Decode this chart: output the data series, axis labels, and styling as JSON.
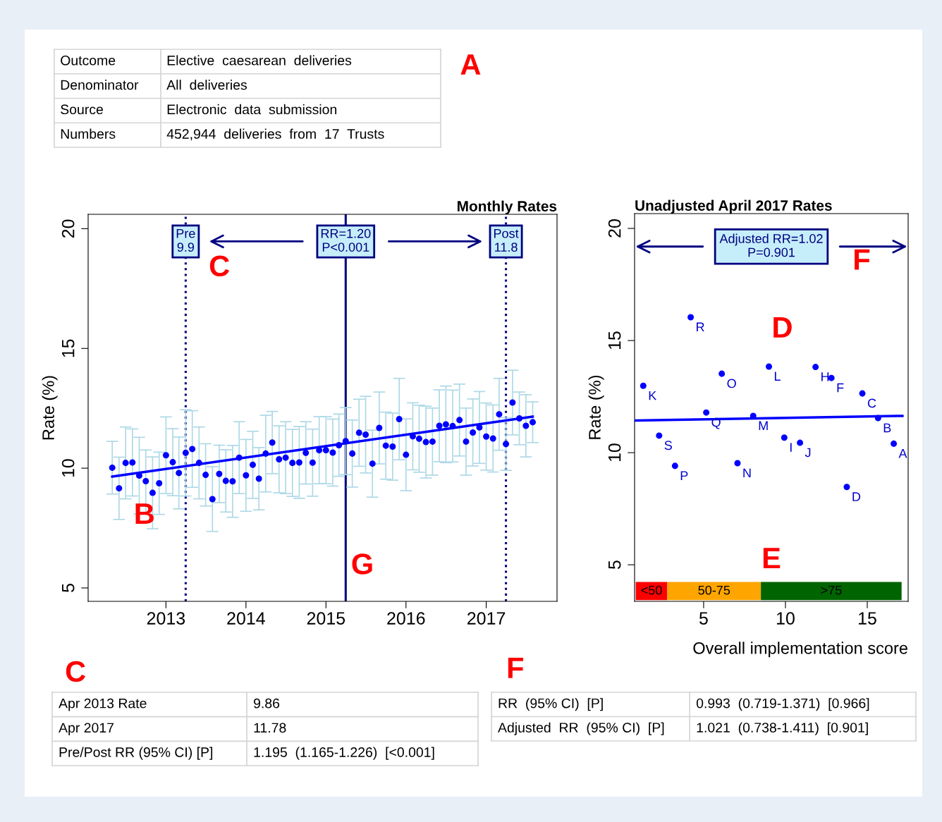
{
  "chart_data": [
    {
      "type": "other",
      "title": "A",
      "categories": [
        "Outcome",
        "Denominator",
        "Source",
        "Numbers"
      ],
      "annotations": [
        "Elective  caesarean  deliveries",
        "All  deliveries",
        "Electronic  data  submission",
        "452,944  deliveries  from  17  Trusts"
      ]
    },
    {
      "type": "scatter",
      "title": "Monthly Rates",
      "ylabel": "Rate (%)",
      "marker": "circle",
      "x": [
        "2012-05",
        "2012-06",
        "2012-07",
        "2012-08",
        "2012-09",
        "2012-10",
        "2012-11",
        "2012-12",
        "2013-01",
        "2013-02",
        "2013-03",
        "2013-04",
        "2013-05",
        "2013-06",
        "2013-07",
        "2013-08",
        "2013-09",
        "2013-10",
        "2013-11",
        "2013-12",
        "2014-01",
        "2014-02",
        "2014-03",
        "2014-04",
        "2014-05",
        "2014-06",
        "2014-07",
        "2014-08",
        "2014-09",
        "2014-10",
        "2014-11",
        "2014-12",
        "2015-01",
        "2015-02",
        "2015-03",
        "2015-04",
        "2015-05",
        "2015-06",
        "2015-07",
        "2015-08",
        "2015-09",
        "2015-10",
        "2015-11",
        "2015-12",
        "2016-01",
        "2016-02",
        "2016-03",
        "2016-04",
        "2016-05",
        "2016-06",
        "2016-07",
        "2016-08",
        "2016-09",
        "2016-10",
        "2016-11",
        "2016-12",
        "2017-01",
        "2017-02",
        "2017-03",
        "2017-04",
        "2017-05",
        "2017-06",
        "2017-07",
        "2017-08"
      ],
      "series": [
        {
          "type": "scatter",
          "color": "#0000ff",
          "values": [
            10.02,
            9.16,
            10.22,
            10.24,
            9.69,
            9.46,
            8.97,
            9.37,
            10.54,
            10.25,
            9.8,
            10.64,
            10.8,
            10.22,
            9.72,
            8.71,
            9.76,
            9.47,
            9.45,
            10.44,
            9.7,
            10.14,
            9.56,
            10.61,
            11.07,
            10.37,
            10.44,
            10.22,
            10.24,
            10.64,
            10.23,
            10.75,
            10.75,
            10.65,
            10.96,
            11.13,
            10.61,
            11.48,
            11.4,
            10.19,
            11.68,
            10.94,
            10.9,
            12.05,
            10.56,
            11.33,
            11.23,
            11.09,
            11.11,
            11.77,
            11.83,
            11.76,
            12.01,
            11.11,
            11.49,
            11.7,
            11.32,
            11.24,
            12.25,
            11.01,
            12.74,
            12.08,
            11.77,
            11.92
          ],
          "errors": [
            1.1,
            1.3,
            1.5,
            1.4,
            1.6,
            1.3,
            1.5,
            1.3,
            1.6,
            1.4,
            1.5,
            1.8,
            1.6,
            1.5,
            1.3,
            1.35,
            1.2,
            1.3,
            1.5,
            1.5,
            1.5,
            1.4,
            1.3,
            1.6,
            1.3,
            1.4,
            1.5,
            1.4,
            1.5,
            1.3,
            1.4,
            1.4,
            1.4,
            1.4,
            1.3,
            1.4,
            1.4,
            1.4,
            1.6,
            1.4,
            1.5,
            1.4,
            1.4,
            1.7,
            1.5,
            1.4,
            1.4,
            1.5,
            1.4,
            1.5,
            1.6,
            1.5,
            1.5,
            1.4,
            1.4,
            1.5,
            1.4,
            1.4,
            1.5,
            1.1,
            1.35,
            1.1,
            1.3,
            0.85
          ]
        },
        {
          "type": "line",
          "color": "#0000ff",
          "marker": "none",
          "x": [
            "2012-05",
            "2017-08"
          ],
          "values": [
            9.65,
            12.15
          ]
        }
      ],
      "xlim": [
        "2012-01-12",
        "2017-11-20"
      ],
      "xticks": [
        "2013",
        "2014",
        "2015",
        "2016",
        "2017"
      ],
      "ylim": [
        4.44,
        20.6
      ],
      "yticks": [
        5,
        10,
        15,
        20
      ],
      "ref_lines": [
        {
          "axis": "x",
          "value": "2013-04",
          "label": "Pre\n9.9",
          "line_style": "dotted",
          "color": "#000080"
        },
        {
          "axis": "x",
          "value": "2015-04",
          "label": "RR=1.20\nP<0.001",
          "line_style": "solid",
          "color": "#000080"
        },
        {
          "axis": "x",
          "value": "2017-04",
          "label": "Post\n11.8",
          "line_style": "dotted",
          "color": "#000080"
        }
      ],
      "annotations": [
        "B",
        "C",
        "G"
      ]
    },
    {
      "type": "scatter",
      "title": "Unadjusted April 2017 Rates",
      "xlabel": "Overall implementation score",
      "ylabel": "Rate (%)",
      "marker": "circle",
      "series": [
        {
          "type": "scatter",
          "color": "#0000ff",
          "x": [
            4.21,
            1.31,
            6.11,
            8.99,
            11.84,
            12.81,
            14.7,
            5.16,
            8.03,
            15.66,
            2.28,
            9.93,
            10.89,
            16.62,
            3.25,
            7.07,
            13.75
          ],
          "values": [
            16.04,
            12.98,
            13.52,
            13.84,
            13.82,
            13.33,
            12.64,
            11.79,
            11.64,
            11.54,
            10.76,
            10.67,
            10.44,
            10.4,
            9.41,
            9.53,
            8.47
          ]
        },
        {
          "type": "line",
          "color": "#0000ff",
          "marker": "none",
          "x": [
            0.8,
            17.15
          ],
          "values": [
            11.43,
            11.64
          ]
        }
      ],
      "xlim": [
        0.78,
        17.5
      ],
      "xticks": [
        5,
        10,
        15
      ],
      "ylim": [
        3.37,
        20.66
      ],
      "yticks": [
        5,
        10,
        15,
        20
      ],
      "bands": [
        {
          "axis": "x",
          "from": 0.85,
          "to": 2.78,
          "label": "<50",
          "color": "#ff0000"
        },
        {
          "axis": "x",
          "from": 2.78,
          "to": 8.5,
          "label": "50-75",
          "color": "#ffa500"
        },
        {
          "axis": "x",
          "from": 8.5,
          "to": 17.1,
          "label": ">75",
          "color": "#006400"
        }
      ],
      "annotations": [
        "Adjusted RR=1.02\nP=0.901",
        "D",
        "E",
        "F",
        {
          "text": "R",
          "x": 4.21,
          "y": 16.04
        },
        {
          "text": "K",
          "x": 1.31,
          "y": 12.98
        },
        {
          "text": "O",
          "x": 6.11,
          "y": 13.52
        },
        {
          "text": "L",
          "x": 8.99,
          "y": 13.84
        },
        {
          "text": "H",
          "x": 11.84,
          "y": 13.82
        },
        {
          "text": "F",
          "x": 12.81,
          "y": 13.33
        },
        {
          "text": "C",
          "x": 14.7,
          "y": 12.64
        },
        {
          "text": "Q",
          "x": 5.16,
          "y": 11.79
        },
        {
          "text": "M",
          "x": 8.03,
          "y": 11.64
        },
        {
          "text": "B",
          "x": 15.66,
          "y": 11.54
        },
        {
          "text": "S",
          "x": 2.28,
          "y": 10.76
        },
        {
          "text": "I",
          "x": 9.93,
          "y": 10.67
        },
        {
          "text": "J",
          "x": 10.89,
          "y": 10.44
        },
        {
          "text": "A",
          "x": 16.62,
          "y": 10.4
        },
        {
          "text": "P",
          "x": 3.25,
          "y": 9.41
        },
        {
          "text": "N",
          "x": 7.07,
          "y": 9.53
        },
        {
          "text": "D",
          "x": 13.75,
          "y": 8.47
        }
      ]
    },
    {
      "type": "other",
      "title": "C",
      "categories": [
        "Apr 2013 Rate",
        "Apr 2017",
        "Pre/Post RR (95% CI) [P]"
      ],
      "annotations": [
        "9.86",
        "11.78",
        "1.195  (1.165-1.226)  [<0.001]"
      ]
    },
    {
      "type": "other",
      "title": "F",
      "categories": [
        "RR  (95% CI)  [P]",
        "Adjusted  RR  (95% CI)  [P]"
      ],
      "annotations": [
        "0.993  (0.719-1.371)  [0.966]",
        "1.021  (0.738-1.411)  [0.901]"
      ]
    }
  ]
}
